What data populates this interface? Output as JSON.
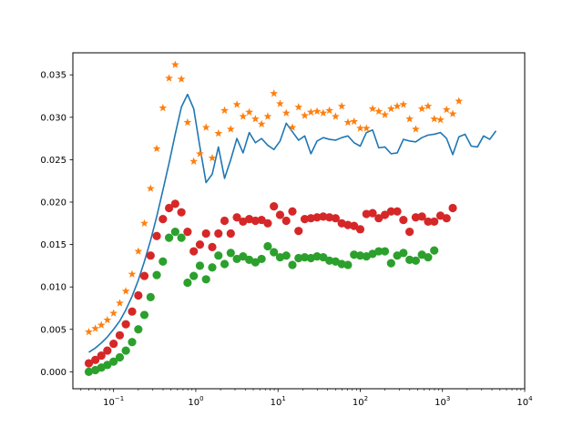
{
  "chart_data": {
    "type": "scatter",
    "x_scale": "log",
    "xlim": [
      0.032,
      10000
    ],
    "ylim": [
      -0.002,
      0.0376
    ],
    "grid": false,
    "legend": "none",
    "x_ticks": [
      {
        "value": 0.1,
        "base": "10",
        "exp": "−1"
      },
      {
        "value": 1,
        "base": "10",
        "exp": "0"
      },
      {
        "value": 10,
        "base": "10",
        "exp": "1"
      },
      {
        "value": 100,
        "base": "10",
        "exp": "2"
      },
      {
        "value": 1000,
        "base": "10",
        "exp": "3"
      },
      {
        "value": 10000,
        "base": "10",
        "exp": "4"
      }
    ],
    "y_ticks": [
      {
        "value": 0.0,
        "label": "0.000"
      },
      {
        "value": 0.005,
        "label": "0.005"
      },
      {
        "value": 0.01,
        "label": "0.010"
      },
      {
        "value": 0.015,
        "label": "0.015"
      },
      {
        "value": 0.02,
        "label": "0.020"
      },
      {
        "value": 0.025,
        "label": "0.025"
      },
      {
        "value": 0.03,
        "label": "0.030"
      },
      {
        "value": 0.035,
        "label": "0.035"
      }
    ],
    "x": [
      0.05,
      0.06,
      0.071,
      0.084,
      0.1,
      0.119,
      0.141,
      0.168,
      0.2,
      0.237,
      0.282,
      0.335,
      0.398,
      0.473,
      0.562,
      0.668,
      0.794,
      0.944,
      1.122,
      1.333,
      1.585,
      1.884,
      2.239,
      2.661,
      3.162,
      3.758,
      4.467,
      5.309,
      6.31,
      7.499,
      8.913,
      10.59,
      12.59,
      14.96,
      17.78,
      21.13,
      25.12,
      29.85,
      35.48,
      42.17,
      50.12,
      59.57,
      70.79,
      84.14,
      100,
      118.9,
      141.3,
      167.9,
      199.5,
      237.1,
      281.8,
      335,
      398.1,
      473.2,
      562.3,
      668.3,
      794.3,
      944.1,
      1122,
      1334,
      1585,
      1884,
      2239,
      2661,
      3162,
      3758,
      4467,
      5309,
      6310
    ],
    "series": [
      {
        "mark": "line",
        "color": "#1f77b4",
        "values": [
          0.0023,
          0.0028,
          0.0034,
          0.0041,
          0.005,
          0.006,
          0.0073,
          0.0089,
          0.0108,
          0.013,
          0.0155,
          0.0183,
          0.0214,
          0.0246,
          0.028,
          0.0312,
          0.0327,
          0.031,
          0.0265,
          0.0223,
          0.0233,
          0.0265,
          0.0228,
          0.025,
          0.0275,
          0.0258,
          0.0282,
          0.027,
          0.0275,
          0.0267,
          0.0262,
          0.0272,
          0.0293,
          0.0283,
          0.0273,
          0.0278,
          0.0257,
          0.0272,
          0.0276,
          0.0274,
          0.0273,
          0.0276,
          0.0278,
          0.027,
          0.0266,
          0.0282,
          0.0285,
          0.0264,
          0.0265,
          0.0257,
          0.0258,
          0.0274,
          0.0272,
          0.0271,
          0.0276,
          0.0279,
          0.028,
          0.0282,
          0.0275,
          0.0256,
          0.0277,
          0.028,
          0.0266,
          0.0265,
          0.0278,
          0.0274,
          0.0284
        ]
      },
      {
        "mark": "star",
        "color": "#ff7f0e",
        "values": [
          0.0047,
          0.0051,
          0.0055,
          0.0061,
          0.0069,
          0.0081,
          0.0095,
          0.0115,
          0.0142,
          0.0175,
          0.0216,
          0.0263,
          0.0311,
          0.0346,
          0.0362,
          0.0345,
          0.0294,
          0.0248,
          0.0257,
          0.0288,
          0.0252,
          0.0281,
          0.0308,
          0.0286,
          0.0315,
          0.0301,
          0.0306,
          0.0298,
          0.0292,
          0.0301,
          0.0328,
          0.0316,
          0.0305,
          0.0288,
          0.0312,
          0.0302,
          0.0306,
          0.0307,
          0.0305,
          0.0308,
          0.0301,
          0.0313,
          0.0294,
          0.0295,
          0.0287,
          0.0287,
          0.031,
          0.0307,
          0.0303,
          0.031,
          0.0313,
          0.0315,
          0.0298,
          0.0286,
          0.031,
          0.0313,
          0.0298,
          0.0297,
          0.0309,
          0.0304,
          0.0319
        ]
      },
      {
        "mark": "circle",
        "color": "#d62728",
        "values": [
          0.001,
          0.0014,
          0.0019,
          0.0025,
          0.0033,
          0.0043,
          0.0056,
          0.0071,
          0.009,
          0.0113,
          0.0137,
          0.016,
          0.018,
          0.0193,
          0.0198,
          0.0188,
          0.0165,
          0.0142,
          0.015,
          0.0163,
          0.0147,
          0.0163,
          0.0178,
          0.0163,
          0.0182,
          0.0177,
          0.018,
          0.0178,
          0.0179,
          0.0175,
          0.0195,
          0.0185,
          0.0178,
          0.0189,
          0.0166,
          0.018,
          0.0181,
          0.0182,
          0.0183,
          0.0182,
          0.0181,
          0.0175,
          0.0173,
          0.0172,
          0.0168,
          0.0186,
          0.0187,
          0.0181,
          0.0185,
          0.0189,
          0.0189,
          0.0179,
          0.0165,
          0.0182,
          0.0183,
          0.0177,
          0.0177,
          0.0184,
          0.0181,
          0.0193
        ]
      },
      {
        "mark": "circle",
        "color": "#2ca02c",
        "values": [
          0.0,
          0.0002,
          0.0005,
          0.0008,
          0.0012,
          0.0017,
          0.0025,
          0.0035,
          0.005,
          0.0067,
          0.0088,
          0.0114,
          0.013,
          0.0158,
          0.0165,
          0.0158,
          0.0105,
          0.0113,
          0.0125,
          0.0109,
          0.0123,
          0.0137,
          0.0127,
          0.014,
          0.0133,
          0.0136,
          0.0132,
          0.0129,
          0.0133,
          0.0148,
          0.0141,
          0.0135,
          0.0137,
          0.0126,
          0.0134,
          0.0135,
          0.0134,
          0.0136,
          0.0135,
          0.0131,
          0.013,
          0.0127,
          0.0126,
          0.0138,
          0.0137,
          0.0136,
          0.0139,
          0.0142,
          0.0142,
          0.0128,
          0.0137,
          0.014,
          0.0132,
          0.0131,
          0.0138,
          0.0135,
          0.0143
        ]
      }
    ]
  }
}
